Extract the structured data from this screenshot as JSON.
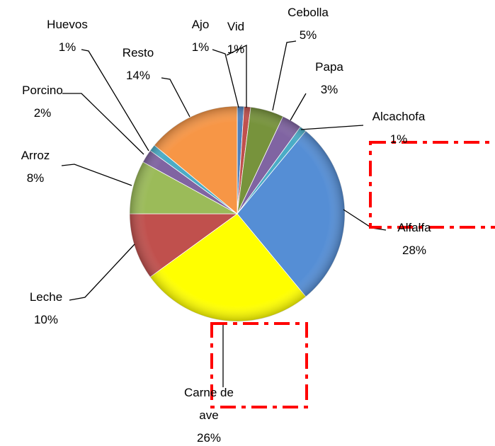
{
  "chart_data": {
    "type": "pie",
    "categories": [
      "Ajo",
      "Vid",
      "Cebolla",
      "Papa",
      "Alcachofa",
      "Alfalfa",
      "Carne de ave",
      "Leche",
      "Arroz",
      "Porcino",
      "Huevos",
      "Resto"
    ],
    "values": [
      1,
      1,
      5,
      3,
      1,
      28,
      26,
      10,
      8,
      2,
      1,
      14
    ],
    "value_labels": [
      "1%",
      "1%",
      "5%",
      "3%",
      "1%",
      "28%",
      "26%",
      "10%",
      "8%",
      "2%",
      "1%",
      "14%"
    ],
    "colors": [
      "#4f81bd",
      "#c0504d",
      "#77933c",
      "#8064a2",
      "#4bacc6",
      "#558ed5",
      "#ffff00",
      "#c0504d",
      "#9bbb59",
      "#8064a2",
      "#4bacc6",
      "#f79646"
    ]
  }
}
